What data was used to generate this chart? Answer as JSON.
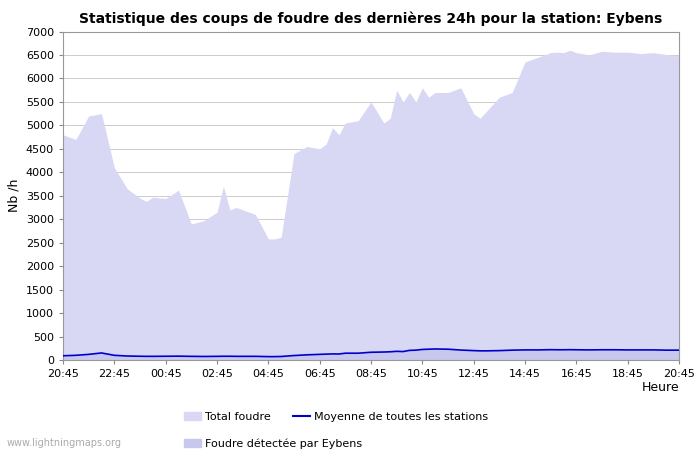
{
  "title": "Statistique des coups de foudre des dernières 24h pour la station: Eybens",
  "xlabel": "Heure",
  "ylabel": "Nb /h",
  "xlim": [
    0,
    24
  ],
  "ylim": [
    0,
    7000
  ],
  "yticks": [
    0,
    500,
    1000,
    1500,
    2000,
    2500,
    3000,
    3500,
    4000,
    4500,
    5000,
    5500,
    6000,
    6500,
    7000
  ],
  "xtick_labels": [
    "20:45",
    "22:45",
    "00:45",
    "02:45",
    "04:45",
    "06:45",
    "08:45",
    "10:45",
    "12:45",
    "14:45",
    "16:45",
    "18:45",
    "20:45"
  ],
  "background_color": "#ffffff",
  "plot_bg_color": "#ffffff",
  "grid_color": "#cccccc",
  "fill_total_color": "#d8d8f5",
  "fill_eybens_color": "#c8c8ee",
  "line_color": "#0000cc",
  "watermark": "www.lightningmaps.org",
  "x": [
    0.0,
    0.5,
    1.0,
    1.5,
    2.0,
    2.5,
    3.0,
    3.25,
    3.5,
    4.0,
    4.5,
    5.0,
    5.5,
    6.0,
    6.25,
    6.5,
    6.75,
    7.0,
    7.5,
    8.0,
    8.25,
    8.5,
    9.0,
    9.5,
    10.0,
    10.25,
    10.5,
    10.75,
    11.0,
    11.5,
    12.0,
    12.5,
    12.75,
    13.0,
    13.25,
    13.5,
    13.75,
    14.0,
    14.25,
    14.5,
    15.0,
    15.5,
    16.0,
    16.25,
    16.5,
    17.0,
    17.5,
    18.0,
    18.5,
    19.0,
    19.25,
    19.5,
    19.75,
    20.0,
    20.5,
    21.0,
    21.5,
    22.0,
    22.5,
    23.0,
    23.5,
    24.0
  ],
  "total_foudre": [
    4800,
    4700,
    5200,
    5250,
    4100,
    3650,
    3450,
    3380,
    3470,
    3440,
    3620,
    2900,
    2970,
    3150,
    3700,
    3200,
    3250,
    3200,
    3100,
    2580,
    2580,
    2620,
    4400,
    4550,
    4500,
    4600,
    4950,
    4800,
    5050,
    5100,
    5500,
    5050,
    5150,
    5750,
    5500,
    5700,
    5500,
    5800,
    5600,
    5700,
    5700,
    5800,
    5250,
    5150,
    5300,
    5600,
    5700,
    6350,
    6450,
    6550,
    6560,
    6550,
    6600,
    6550,
    6500,
    6580,
    6560,
    6560,
    6530,
    6550,
    6510,
    6480
  ],
  "eybens_foudre": [
    90,
    100,
    120,
    150,
    100,
    85,
    80,
    78,
    78,
    80,
    82,
    78,
    75,
    78,
    80,
    80,
    78,
    78,
    78,
    72,
    72,
    75,
    95,
    110,
    120,
    125,
    130,
    128,
    145,
    145,
    165,
    170,
    175,
    185,
    180,
    205,
    210,
    225,
    230,
    235,
    230,
    212,
    200,
    195,
    195,
    200,
    210,
    215,
    215,
    220,
    218,
    218,
    220,
    218,
    215,
    218,
    218,
    215,
    215,
    215,
    210,
    210
  ],
  "mean_line": [
    90,
    100,
    120,
    150,
    100,
    85,
    80,
    78,
    78,
    80,
    82,
    78,
    75,
    78,
    80,
    80,
    78,
    78,
    78,
    72,
    72,
    75,
    95,
    110,
    120,
    125,
    130,
    128,
    145,
    145,
    165,
    170,
    175,
    185,
    180,
    205,
    210,
    225,
    230,
    235,
    230,
    212,
    200,
    195,
    195,
    200,
    210,
    215,
    215,
    220,
    218,
    218,
    220,
    218,
    215,
    218,
    218,
    215,
    215,
    215,
    210,
    210
  ],
  "title_fontsize": 10,
  "tick_fontsize": 8,
  "legend_fontsize": 8
}
